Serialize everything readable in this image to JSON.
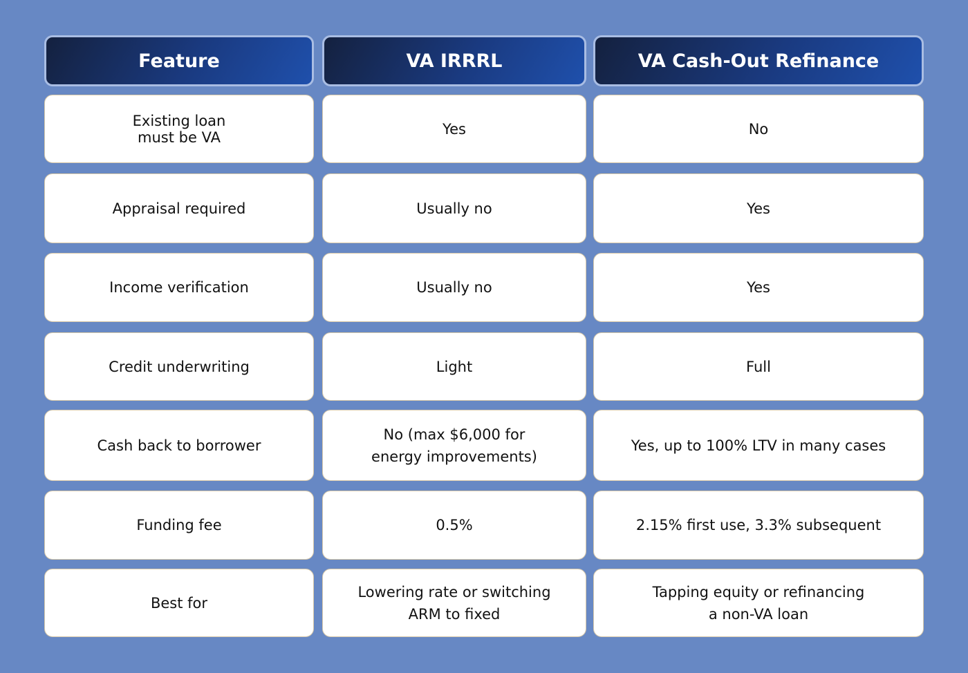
{
  "headers": [
    "Feature",
    "VA IRRRL",
    "VA Cash-Out Refinance"
  ],
  "rows": [
    [
      "Existing loan\nmust be VA",
      "Yes",
      "No"
    ],
    [
      "Appraisal required",
      "Usually no",
      "Yes"
    ],
    [
      "Income verification",
      "Usually no",
      "Yes"
    ],
    [
      "Credit underwriting",
      "Light",
      "Full"
    ],
    [
      "Cash back to borrower",
      "No (max $6,000 for\nenergy improvements)",
      "Yes, up to 100% LTV in many cases"
    ],
    [
      "Funding fee",
      "0.5%",
      "2.15% first use, 3.3% subsequent"
    ],
    [
      "Best for",
      "Lowering rate or switching\nARM to fixed",
      "Tapping equity or refinancing\na non-VA loan"
    ]
  ],
  "colors": {
    "background": "#6788c4",
    "header_start": "#14213f",
    "header_end": "#1f50ac",
    "cell": "#ffffff"
  }
}
